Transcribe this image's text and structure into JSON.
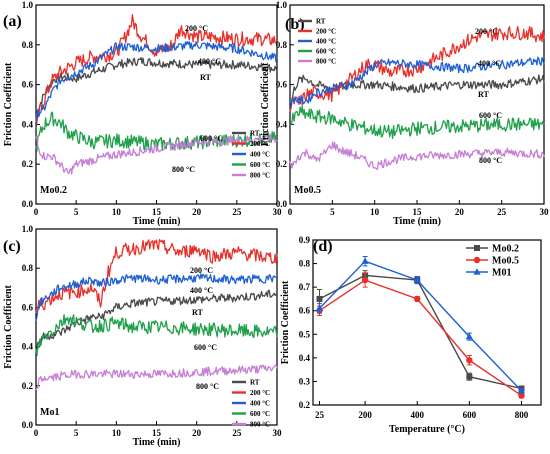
{
  "figure": {
    "panels": [
      "(a)",
      "(b)",
      "(c)",
      "(d)"
    ]
  },
  "chart_data": [
    {
      "type": "line",
      "panel_label": "(a)",
      "sample": "Mo0.2",
      "xlabel": "Time (min)",
      "ylabel": "Friction Coefficient",
      "xlim": [
        0,
        30
      ],
      "ylim": [
        0,
        1.0
      ],
      "xticks": [
        0,
        5,
        10,
        15,
        20,
        25,
        30
      ],
      "yticks": [
        0.0,
        0.2,
        0.4,
        0.6,
        0.8,
        1.0
      ],
      "legend": "bottom-right",
      "series": [
        {
          "name": "RT",
          "color": "#4a4a4a",
          "x": [
            0,
            0.3,
            1,
            2,
            3,
            5,
            7,
            10,
            13,
            15,
            20,
            25,
            28,
            30
          ],
          "y": [
            0.38,
            0.48,
            0.55,
            0.62,
            0.64,
            0.63,
            0.66,
            0.7,
            0.72,
            0.71,
            0.7,
            0.7,
            0.69,
            0.68
          ]
        },
        {
          "name": "200 °C",
          "color": "#e8302b",
          "x": [
            0,
            0.3,
            1,
            2,
            3,
            5,
            7,
            9,
            10,
            11,
            12,
            13,
            15,
            17,
            18,
            20,
            22,
            25,
            28,
            30
          ],
          "y": [
            0.4,
            0.45,
            0.52,
            0.62,
            0.66,
            0.71,
            0.74,
            0.75,
            0.76,
            0.83,
            0.92,
            0.85,
            0.76,
            0.8,
            0.88,
            0.84,
            0.84,
            0.83,
            0.83,
            0.82
          ]
        },
        {
          "name": "400 °C",
          "color": "#1f5fd6",
          "x": [
            0,
            0.3,
            1,
            2,
            3,
            5,
            7,
            9,
            10,
            12,
            15,
            20,
            25,
            28,
            30
          ],
          "y": [
            0.43,
            0.46,
            0.48,
            0.56,
            0.62,
            0.66,
            0.7,
            0.76,
            0.79,
            0.79,
            0.78,
            0.8,
            0.78,
            0.75,
            0.73
          ]
        },
        {
          "name": "600 °C",
          "color": "#1fa04a",
          "x": [
            0,
            0.5,
            1,
            2,
            3,
            4,
            5,
            7,
            10,
            15,
            20,
            25,
            30
          ],
          "y": [
            0.28,
            0.35,
            0.4,
            0.43,
            0.41,
            0.36,
            0.34,
            0.31,
            0.32,
            0.3,
            0.31,
            0.32,
            0.33
          ]
        },
        {
          "name": "800 °C",
          "color": "#c77fd6",
          "x": [
            0,
            0.3,
            1,
            2,
            3,
            4,
            5,
            7,
            10,
            12,
            15,
            20,
            25,
            30
          ],
          "y": [
            0.33,
            0.28,
            0.24,
            0.24,
            0.2,
            0.15,
            0.2,
            0.22,
            0.25,
            0.26,
            0.28,
            0.31,
            0.32,
            0.33
          ]
        }
      ],
      "annotations": [
        "200 °C",
        "400 °C",
        "RT",
        "600 °C",
        "800 °C"
      ]
    },
    {
      "type": "line",
      "panel_label": "(b)",
      "sample": "Mo0.5",
      "xlabel": "Time (min)",
      "ylabel": "Friction Coefficient",
      "xlim": [
        0,
        30
      ],
      "ylim": [
        0,
        1.0
      ],
      "xticks": [
        0,
        5,
        10,
        15,
        20,
        25,
        30
      ],
      "yticks": [
        0.0,
        0.2,
        0.4,
        0.6,
        0.8,
        1.0
      ],
      "legend": "top-left",
      "series": [
        {
          "name": "RT",
          "color": "#4a4a4a",
          "x": [
            0,
            0.5,
            1,
            2,
            3,
            5,
            7,
            10,
            15,
            20,
            25,
            30
          ],
          "y": [
            0.46,
            0.58,
            0.62,
            0.63,
            0.6,
            0.58,
            0.6,
            0.6,
            0.58,
            0.6,
            0.6,
            0.63
          ]
        },
        {
          "name": "200 °C",
          "color": "#e8302b",
          "x": [
            0,
            0.5,
            1,
            2,
            3,
            5,
            7,
            9,
            10,
            12,
            15,
            18,
            20,
            22,
            25,
            28,
            30
          ],
          "y": [
            0.48,
            0.52,
            0.5,
            0.55,
            0.56,
            0.55,
            0.62,
            0.7,
            0.7,
            0.66,
            0.68,
            0.75,
            0.8,
            0.84,
            0.86,
            0.86,
            0.84
          ]
        },
        {
          "name": "400 °C",
          "color": "#1f5fd6",
          "x": [
            0,
            0.5,
            1,
            2,
            3,
            5,
            7,
            9,
            10,
            12,
            15,
            18,
            20,
            25,
            30
          ],
          "y": [
            0.5,
            0.53,
            0.52,
            0.52,
            0.56,
            0.58,
            0.6,
            0.66,
            0.7,
            0.71,
            0.7,
            0.69,
            0.68,
            0.7,
            0.72
          ]
        },
        {
          "name": "600 °C",
          "color": "#1fa04a",
          "x": [
            0,
            0.5,
            1,
            2,
            3,
            5,
            7,
            10,
            12,
            15,
            20,
            25,
            30
          ],
          "y": [
            0.4,
            0.43,
            0.46,
            0.45,
            0.44,
            0.43,
            0.4,
            0.37,
            0.36,
            0.38,
            0.39,
            0.4,
            0.4
          ]
        },
        {
          "name": "800 °C",
          "color": "#c77fd6",
          "x": [
            0,
            0.5,
            1,
            2,
            3,
            4,
            5,
            6,
            8,
            10,
            12,
            15,
            20,
            25,
            30
          ],
          "y": [
            0.2,
            0.2,
            0.24,
            0.26,
            0.22,
            0.25,
            0.3,
            0.27,
            0.24,
            0.19,
            0.22,
            0.24,
            0.25,
            0.26,
            0.25
          ]
        }
      ],
      "annotations": [
        "200 °C",
        "400 °C",
        "RT",
        "600 °C",
        "800 °C"
      ]
    },
    {
      "type": "line",
      "panel_label": "(c)",
      "sample": "Mo1",
      "xlabel": "Time (min)",
      "ylabel": "Friction Coefficient",
      "xlim": [
        0,
        30
      ],
      "ylim": [
        0,
        1.0
      ],
      "xticks": [
        0,
        5,
        10,
        15,
        20,
        25,
        30
      ],
      "yticks": [
        0.0,
        0.2,
        0.4,
        0.6,
        0.8,
        1.0
      ],
      "legend": "bottom-right",
      "series": [
        {
          "name": "RT",
          "color": "#4a4a4a",
          "x": [
            0,
            0.5,
            1,
            2,
            3,
            5,
            7,
            8,
            10,
            12,
            15,
            20,
            25,
            30
          ],
          "y": [
            0.38,
            0.44,
            0.45,
            0.46,
            0.47,
            0.52,
            0.55,
            0.55,
            0.6,
            0.62,
            0.63,
            0.64,
            0.65,
            0.67
          ]
        },
        {
          "name": "200 °C",
          "color": "#e8302b",
          "x": [
            0,
            0.5,
            1,
            2,
            3,
            5,
            7,
            8,
            9,
            10,
            12,
            15,
            18,
            20,
            22,
            25,
            28,
            30
          ],
          "y": [
            0.58,
            0.62,
            0.62,
            0.65,
            0.67,
            0.68,
            0.7,
            0.62,
            0.78,
            0.88,
            0.9,
            0.92,
            0.88,
            0.9,
            0.86,
            0.88,
            0.86,
            0.85
          ]
        },
        {
          "name": "400 °C",
          "color": "#1f5fd6",
          "x": [
            0,
            0.5,
            1,
            2,
            3,
            5,
            7,
            8,
            10,
            12,
            15,
            20,
            25,
            30
          ],
          "y": [
            0.55,
            0.62,
            0.64,
            0.67,
            0.7,
            0.72,
            0.74,
            0.72,
            0.74,
            0.75,
            0.74,
            0.75,
            0.74,
            0.75
          ]
        },
        {
          "name": "600 °C",
          "color": "#1fa04a",
          "x": [
            0,
            0.5,
            1,
            2,
            3,
            4,
            5,
            7,
            10,
            12,
            15,
            20,
            25,
            30
          ],
          "y": [
            0.36,
            0.42,
            0.45,
            0.48,
            0.52,
            0.55,
            0.53,
            0.5,
            0.52,
            0.5,
            0.5,
            0.49,
            0.48,
            0.47
          ]
        },
        {
          "name": "800 °C",
          "color": "#c77fd6",
          "x": [
            0,
            0.3,
            1,
            2,
            3,
            5,
            7,
            10,
            15,
            20,
            25,
            30
          ],
          "y": [
            0.16,
            0.22,
            0.24,
            0.24,
            0.25,
            0.26,
            0.26,
            0.26,
            0.26,
            0.27,
            0.28,
            0.29
          ]
        }
      ],
      "annotations": [
        "200 °C",
        "400 °C",
        "RT",
        "600 °C",
        "800 °C"
      ]
    },
    {
      "type": "line",
      "panel_label": "(d)",
      "xlabel": "Temperature (°C)",
      "ylabel": "Friction Coefficient",
      "ylim": [
        0.2,
        0.9
      ],
      "categories": [
        "25",
        "200",
        "400",
        "600",
        "800"
      ],
      "yticks": [
        0.2,
        0.3,
        0.4,
        0.5,
        0.6,
        0.7,
        0.8,
        0.9
      ],
      "legend": "top-right",
      "series": [
        {
          "name": "Mo0.2",
          "color": "#4a4a4a",
          "marker": "square",
          "values": [
            0.65,
            0.75,
            0.73,
            0.32,
            0.27
          ],
          "errors": [
            0.04,
            0.02,
            0.015,
            0.015,
            0.01
          ]
        },
        {
          "name": "Mo0.5",
          "color": "#e8302b",
          "marker": "circle",
          "values": [
            0.6,
            0.73,
            0.65,
            0.39,
            0.24
          ],
          "errors": [
            0.02,
            0.03,
            0.01,
            0.02,
            0.01
          ]
        },
        {
          "name": "M01",
          "color": "#1f5fd6",
          "marker": "triangle",
          "values": [
            0.61,
            0.81,
            0.73,
            0.49,
            0.26
          ],
          "errors": [
            0.02,
            0.02,
            0.015,
            0.015,
            0.01
          ]
        }
      ]
    }
  ]
}
